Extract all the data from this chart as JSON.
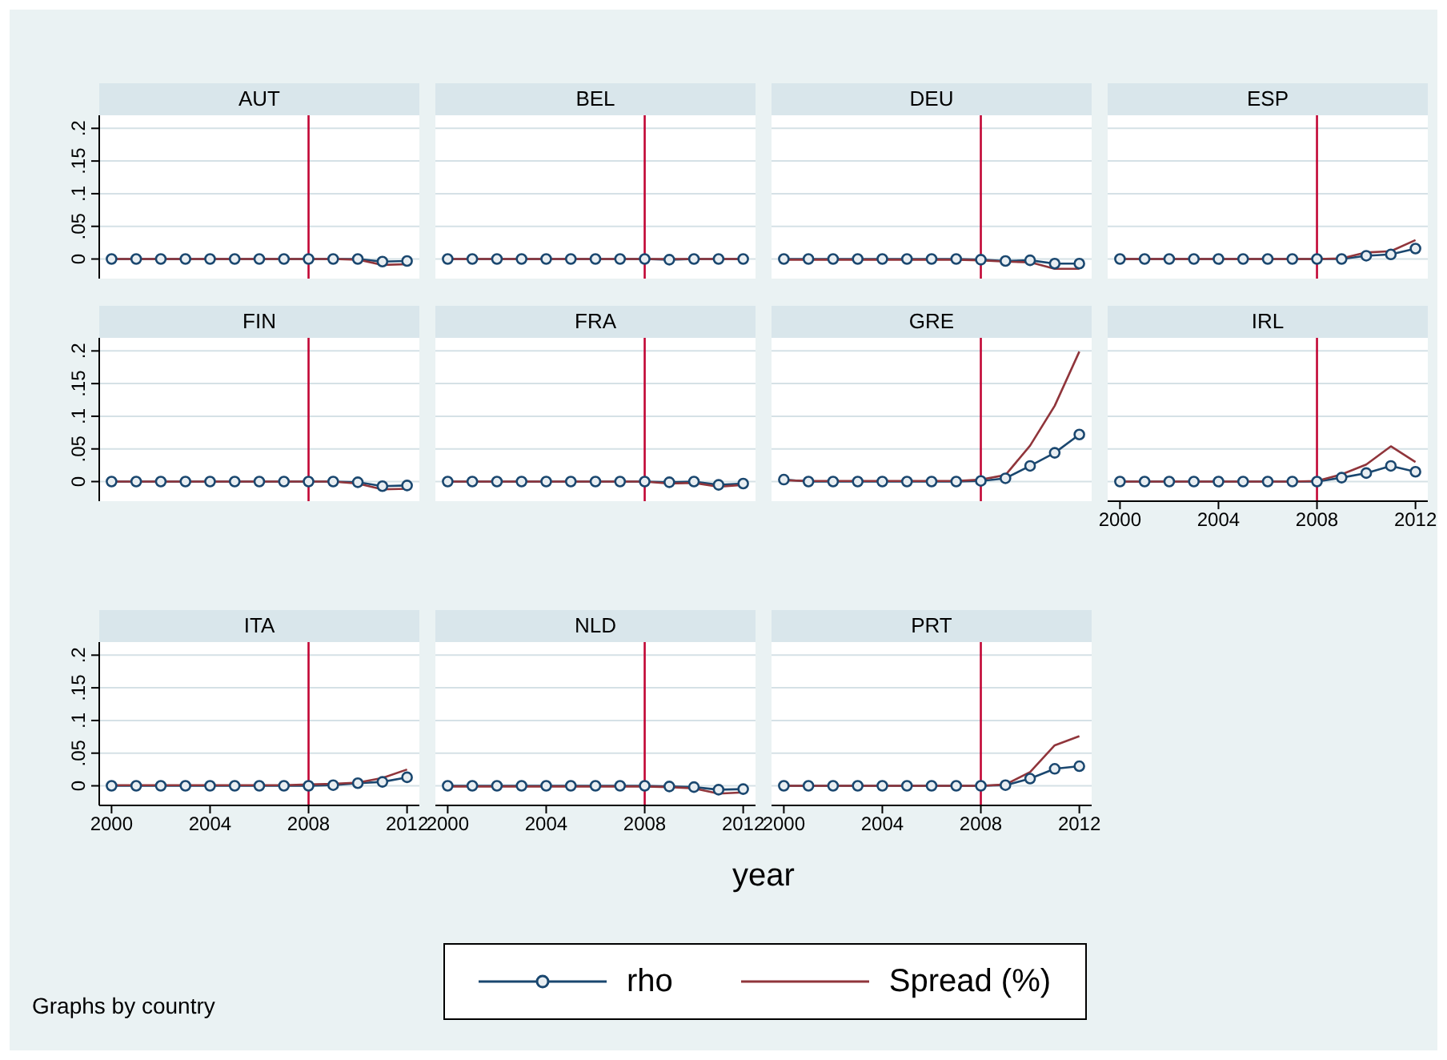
{
  "chart_data": [
    {
      "type": "line",
      "title": "AUT",
      "x": [
        2000,
        2001,
        2002,
        2003,
        2004,
        2005,
        2006,
        2007,
        2008,
        2009,
        2010,
        2011,
        2012
      ],
      "series": [
        {
          "name": "rho",
          "color": "#1a476f",
          "marker": "circle",
          "values": [
            0,
            0,
            0,
            0,
            0,
            0,
            0,
            0,
            0,
            0,
            0,
            -0.004,
            -0.003
          ]
        },
        {
          "name": "Spread (%)",
          "color": "#90353b",
          "marker": "none",
          "values": [
            0,
            0,
            0,
            0,
            0,
            0,
            0,
            0,
            0,
            0,
            -0.001,
            -0.009,
            -0.008
          ]
        }
      ],
      "xlim": [
        1999.5,
        2012.5
      ],
      "xticks": [
        2000,
        2004,
        2008,
        2012
      ],
      "ylim": [
        -0.03,
        0.22
      ],
      "yticks": [
        {
          "value": 0,
          "label": "0"
        },
        {
          "value": 0.05,
          "label": ".05"
        },
        {
          "value": 0.1,
          "label": ".1"
        },
        {
          "value": 0.15,
          "label": ".15"
        },
        {
          "value": 0.2,
          "label": ".2"
        }
      ],
      "grid": "y",
      "ref_lines": [
        {
          "axis": "x",
          "value": 2008,
          "color": "#c10534"
        }
      ],
      "tick_labels": "y",
      "legend": "bottom"
    },
    {
      "type": "line",
      "title": "BEL",
      "x": [
        2000,
        2001,
        2002,
        2003,
        2004,
        2005,
        2006,
        2007,
        2008,
        2009,
        2010,
        2011,
        2012
      ],
      "series": [
        {
          "color": "#1a476f",
          "marker": "circle",
          "values": [
            0,
            0,
            0,
            0,
            0,
            0,
            0,
            0,
            0,
            -0.001,
            0,
            0,
            0
          ]
        },
        {
          "color": "#90353b",
          "marker": "none",
          "values": [
            0,
            0,
            0,
            0,
            0,
            0,
            0,
            0,
            0,
            0,
            0,
            0,
            0
          ]
        }
      ],
      "xlim": [
        1999.5,
        2012.5
      ],
      "xticks": [
        2000,
        2004,
        2008,
        2012
      ],
      "ylim": [
        -0.03,
        0.22
      ],
      "yticks": [
        {
          "value": 0,
          "label": null
        },
        {
          "value": 0.05,
          "label": null
        },
        {
          "value": 0.1,
          "label": null
        },
        {
          "value": 0.15,
          "label": null
        },
        {
          "value": 0.2,
          "label": null
        }
      ],
      "grid": "y",
      "ref_lines": [
        {
          "axis": "x",
          "value": 2008,
          "color": "#c10534"
        }
      ],
      "tick_labels": false
    },
    {
      "type": "line",
      "title": "DEU",
      "x": [
        2000,
        2001,
        2002,
        2003,
        2004,
        2005,
        2006,
        2007,
        2008,
        2009,
        2010,
        2011,
        2012
      ],
      "series": [
        {
          "color": "#1a476f",
          "marker": "circle",
          "values": [
            0,
            0,
            0,
            0,
            0,
            0,
            0,
            0,
            -0.001,
            -0.003,
            -0.002,
            -0.007,
            -0.007
          ]
        },
        {
          "color": "#90353b",
          "marker": "none",
          "values": [
            -0.001,
            -0.001,
            -0.001,
            -0.001,
            -0.001,
            -0.001,
            -0.001,
            -0.001,
            -0.002,
            -0.004,
            -0.005,
            -0.015,
            -0.015
          ]
        }
      ],
      "xlim": [
        1999.5,
        2012.5
      ],
      "xticks": [
        2000,
        2004,
        2008,
        2012
      ],
      "ylim": [
        -0.03,
        0.22
      ],
      "yticks": [
        {
          "value": 0,
          "label": null
        },
        {
          "value": 0.05,
          "label": null
        },
        {
          "value": 0.1,
          "label": null
        },
        {
          "value": 0.15,
          "label": null
        },
        {
          "value": 0.2,
          "label": null
        }
      ],
      "grid": "y",
      "ref_lines": [
        {
          "axis": "x",
          "value": 2008,
          "color": "#c10534"
        }
      ],
      "tick_labels": false
    },
    {
      "type": "line",
      "title": "ESP",
      "x": [
        2000,
        2001,
        2002,
        2003,
        2004,
        2005,
        2006,
        2007,
        2008,
        2009,
        2010,
        2011,
        2012
      ],
      "series": [
        {
          "color": "#1a476f",
          "marker": "circle",
          "values": [
            0,
            0,
            0,
            0,
            0,
            0,
            0,
            0,
            0,
            0,
            0.005,
            0.007,
            0.016
          ]
        },
        {
          "color": "#90353b",
          "marker": "none",
          "values": [
            0,
            0,
            0,
            0,
            0,
            0,
            0,
            0,
            0,
            0.001,
            0.01,
            0.012,
            0.029
          ]
        }
      ],
      "xlim": [
        1999.5,
        2012.5
      ],
      "xticks": [
        2000,
        2004,
        2008,
        2012
      ],
      "ylim": [
        -0.03,
        0.22
      ],
      "yticks": [
        {
          "value": 0,
          "label": null
        },
        {
          "value": 0.05,
          "label": null
        },
        {
          "value": 0.1,
          "label": null
        },
        {
          "value": 0.15,
          "label": null
        },
        {
          "value": 0.2,
          "label": null
        }
      ],
      "grid": "y",
      "ref_lines": [
        {
          "axis": "x",
          "value": 2008,
          "color": "#c10534"
        }
      ],
      "tick_labels": false
    },
    {
      "type": "line",
      "title": "FIN",
      "x": [
        2000,
        2001,
        2002,
        2003,
        2004,
        2005,
        2006,
        2007,
        2008,
        2009,
        2010,
        2011,
        2012
      ],
      "series": [
        {
          "color": "#1a476f",
          "marker": "circle",
          "values": [
            0,
            0,
            0,
            0,
            0,
            0,
            0,
            0,
            0,
            0,
            -0.001,
            -0.007,
            -0.006
          ]
        },
        {
          "color": "#90353b",
          "marker": "none",
          "values": [
            0,
            0,
            0,
            0,
            0,
            0,
            0,
            0,
            0,
            0,
            -0.003,
            -0.012,
            -0.011
          ]
        }
      ],
      "xlim": [
        1999.5,
        2012.5
      ],
      "xticks": [
        2000,
        2004,
        2008,
        2012
      ],
      "ylim": [
        -0.03,
        0.22
      ],
      "yticks": [
        {
          "value": 0,
          "label": "0"
        },
        {
          "value": 0.05,
          "label": ".05"
        },
        {
          "value": 0.1,
          "label": ".1"
        },
        {
          "value": 0.15,
          "label": ".15"
        },
        {
          "value": 0.2,
          "label": ".2"
        }
      ],
      "grid": "y",
      "ref_lines": [
        {
          "axis": "x",
          "value": 2008,
          "color": "#c10534"
        }
      ],
      "tick_labels": "y"
    },
    {
      "type": "line",
      "title": "FRA",
      "x": [
        2000,
        2001,
        2002,
        2003,
        2004,
        2005,
        2006,
        2007,
        2008,
        2009,
        2010,
        2011,
        2012
      ],
      "series": [
        {
          "color": "#1a476f",
          "marker": "circle",
          "values": [
            0,
            0,
            0,
            0,
            0,
            0,
            0,
            0,
            0,
            -0.001,
            0,
            -0.005,
            -0.003
          ]
        },
        {
          "color": "#90353b",
          "marker": "none",
          "values": [
            0,
            0,
            0,
            0,
            0,
            0,
            0,
            0,
            0,
            -0.003,
            -0.002,
            -0.008,
            -0.005
          ]
        }
      ],
      "xlim": [
        1999.5,
        2012.5
      ],
      "xticks": [
        2000,
        2004,
        2008,
        2012
      ],
      "ylim": [
        -0.03,
        0.22
      ],
      "yticks": [
        {
          "value": 0,
          "label": null
        },
        {
          "value": 0.05,
          "label": null
        },
        {
          "value": 0.1,
          "label": null
        },
        {
          "value": 0.15,
          "label": null
        },
        {
          "value": 0.2,
          "label": null
        }
      ],
      "grid": "y",
      "ref_lines": [
        {
          "axis": "x",
          "value": 2008,
          "color": "#c10534"
        }
      ],
      "tick_labels": false
    },
    {
      "type": "line",
      "title": "GRE",
      "x": [
        2000,
        2001,
        2002,
        2003,
        2004,
        2005,
        2006,
        2007,
        2008,
        2009,
        2010,
        2011,
        2012
      ],
      "series": [
        {
          "color": "#1a476f",
          "marker": "circle",
          "values": [
            0.003,
            0,
            0,
            0,
            0,
            0,
            0,
            0,
            0.001,
            0.005,
            0.024,
            0.044,
            0.072
          ]
        },
        {
          "color": "#90353b",
          "marker": "none",
          "values": [
            0.002,
            0.001,
            0.001,
            0.001,
            0.001,
            0.001,
            0.001,
            0.001,
            0.003,
            0.01,
            0.055,
            0.116,
            0.199
          ]
        }
      ],
      "xlim": [
        1999.5,
        2012.5
      ],
      "xticks": [
        2000,
        2004,
        2008,
        2012
      ],
      "ylim": [
        -0.03,
        0.22
      ],
      "yticks": [
        {
          "value": 0,
          "label": null
        },
        {
          "value": 0.05,
          "label": null
        },
        {
          "value": 0.1,
          "label": null
        },
        {
          "value": 0.15,
          "label": null
        },
        {
          "value": 0.2,
          "label": null
        }
      ],
      "grid": "y",
      "ref_lines": [
        {
          "axis": "x",
          "value": 2008,
          "color": "#c10534"
        }
      ],
      "tick_labels": false
    },
    {
      "type": "line",
      "title": "IRL",
      "x": [
        2000,
        2001,
        2002,
        2003,
        2004,
        2005,
        2006,
        2007,
        2008,
        2009,
        2010,
        2011,
        2012
      ],
      "series": [
        {
          "color": "#1a476f",
          "marker": "circle",
          "values": [
            0,
            0,
            0,
            0,
            0,
            0,
            0,
            0,
            0,
            0.006,
            0.013,
            0.024,
            0.015
          ]
        },
        {
          "color": "#90353b",
          "marker": "none",
          "values": [
            0,
            0,
            0,
            0,
            0,
            0,
            0,
            0,
            0.001,
            0.011,
            0.026,
            0.054,
            0.03
          ]
        }
      ],
      "xlim": [
        1999.5,
        2012.5
      ],
      "xticks": [
        2000,
        2004,
        2008,
        2012
      ],
      "ylim": [
        -0.03,
        0.22
      ],
      "yticks": [
        {
          "value": 0,
          "label": null
        },
        {
          "value": 0.05,
          "label": null
        },
        {
          "value": 0.1,
          "label": null
        },
        {
          "value": 0.15,
          "label": null
        },
        {
          "value": 0.2,
          "label": null
        }
      ],
      "grid": "y",
      "ref_lines": [
        {
          "axis": "x",
          "value": 2008,
          "color": "#c10534"
        }
      ],
      "tick_labels": "x"
    },
    {
      "type": "line",
      "title": "ITA",
      "x": [
        2000,
        2001,
        2002,
        2003,
        2004,
        2005,
        2006,
        2007,
        2008,
        2009,
        2010,
        2011,
        2012
      ],
      "series": [
        {
          "color": "#1a476f",
          "marker": "circle",
          "values": [
            0,
            0,
            0,
            0,
            0,
            0,
            0,
            0,
            0,
            0.001,
            0.004,
            0.006,
            0.013
          ]
        },
        {
          "color": "#90353b",
          "marker": "none",
          "values": [
            0.001,
            0.001,
            0.001,
            0.001,
            0.001,
            0.001,
            0.001,
            0.001,
            0.002,
            0.003,
            0.005,
            0.012,
            0.025
          ]
        }
      ],
      "xlim": [
        1999.5,
        2012.5
      ],
      "xticks": [
        2000,
        2004,
        2008,
        2012
      ],
      "ylim": [
        -0.03,
        0.22
      ],
      "yticks": [
        {
          "value": 0,
          "label": "0"
        },
        {
          "value": 0.05,
          "label": ".05"
        },
        {
          "value": 0.1,
          "label": ".1"
        },
        {
          "value": 0.15,
          "label": ".15"
        },
        {
          "value": 0.2,
          "label": ".2"
        }
      ],
      "grid": "y",
      "ref_lines": [
        {
          "axis": "x",
          "value": 2008,
          "color": "#c10534"
        }
      ]
    },
    {
      "type": "line",
      "title": "NLD",
      "x": [
        2000,
        2001,
        2002,
        2003,
        2004,
        2005,
        2006,
        2007,
        2008,
        2009,
        2010,
        2011,
        2012
      ],
      "series": [
        {
          "color": "#1a476f",
          "marker": "circle",
          "values": [
            0,
            0,
            0,
            0,
            0,
            0,
            0,
            0,
            0,
            -0.001,
            -0.002,
            -0.006,
            -0.005
          ]
        },
        {
          "color": "#90353b",
          "marker": "none",
          "values": [
            -0.001,
            -0.001,
            -0.001,
            -0.001,
            -0.001,
            -0.001,
            -0.001,
            -0.001,
            -0.001,
            -0.002,
            -0.004,
            -0.012,
            -0.01
          ]
        }
      ],
      "xlim": [
        1999.5,
        2012.5
      ],
      "xticks": [
        2000,
        2004,
        2008,
        2012
      ],
      "ylim": [
        -0.03,
        0.22
      ],
      "yticks": [
        {
          "value": 0,
          "label": null
        },
        {
          "value": 0.05,
          "label": null
        },
        {
          "value": 0.1,
          "label": null
        },
        {
          "value": 0.15,
          "label": null
        },
        {
          "value": 0.2,
          "label": null
        }
      ],
      "grid": "y",
      "ref_lines": [
        {
          "axis": "x",
          "value": 2008,
          "color": "#c10534"
        }
      ],
      "tick_labels": "x"
    },
    {
      "type": "line",
      "title": "PRT",
      "x": [
        2000,
        2001,
        2002,
        2003,
        2004,
        2005,
        2006,
        2007,
        2008,
        2009,
        2010,
        2011,
        2012
      ],
      "series": [
        {
          "color": "#1a476f",
          "marker": "circle",
          "values": [
            0,
            0,
            0,
            0,
            0,
            0,
            0,
            0,
            0,
            0.001,
            0.011,
            0.026,
            0.03
          ]
        },
        {
          "color": "#90353b",
          "marker": "none",
          "values": [
            0,
            0,
            0,
            0,
            0,
            0,
            0,
            0,
            0,
            0.002,
            0.021,
            0.062,
            0.076
          ]
        }
      ],
      "xlim": [
        1999.5,
        2012.5
      ],
      "xticks": [
        2000,
        2004,
        2008,
        2012
      ],
      "ylim": [
        -0.03,
        0.22
      ],
      "yticks": [
        {
          "value": 0,
          "label": null
        },
        {
          "value": 0.05,
          "label": null
        },
        {
          "value": 0.1,
          "label": null
        },
        {
          "value": 0.15,
          "label": null
        },
        {
          "value": 0.2,
          "label": null
        }
      ],
      "grid": "y",
      "ref_lines": [
        {
          "axis": "x",
          "value": 2008,
          "color": "#c10534"
        }
      ],
      "tick_labels": "x",
      "xlabel": "year",
      "annotations": [
        "Graphs by country"
      ]
    }
  ]
}
